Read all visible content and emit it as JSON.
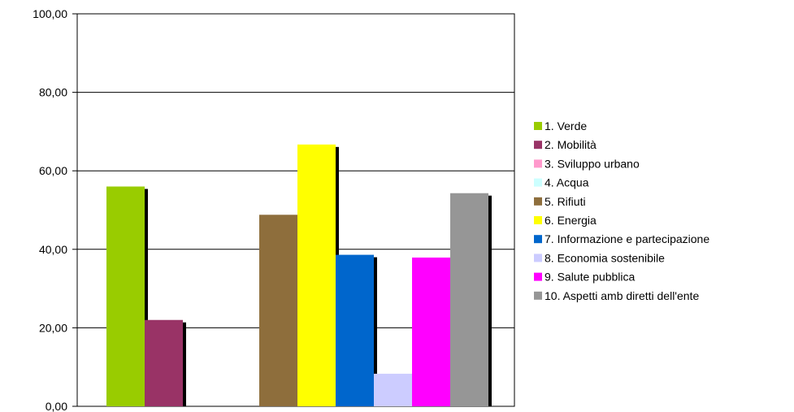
{
  "chart_data": {
    "type": "bar",
    "title": "",
    "xlabel": "",
    "ylabel": "",
    "ylim": [
      0,
      100
    ],
    "yticks": [
      "0,00",
      "20,00",
      "40,00",
      "60,00",
      "80,00",
      "100,00"
    ],
    "grid": true,
    "legend_position": "right",
    "series": [
      {
        "name": "1. Verde",
        "value": 56,
        "color": "#99CC00"
      },
      {
        "name": "2. Mobilità",
        "value": 22,
        "color": "#993366"
      },
      {
        "name": "3. Sviluppo urbano",
        "value": 0,
        "color": "#FF99CC"
      },
      {
        "name": "4. Acqua",
        "value": 0,
        "color": "#CCFFFF"
      },
      {
        "name": "5. Rifiuti",
        "value": 48.8,
        "color": "#8E6E3C"
      },
      {
        "name": "6. Energia",
        "value": 66.7,
        "color": "#FFFF00"
      },
      {
        "name": "7. Informazione e partecipazione",
        "value": 38.6,
        "color": "#0066CC"
      },
      {
        "name": "8. Economia sostenibile",
        "value": 8.3,
        "color": "#CCCCFF"
      },
      {
        "name": "9. Salute pubblica",
        "value": 37.9,
        "color": "#FF00FF"
      },
      {
        "name": "10. Aspetti amb diretti dell'ente",
        "value": 54.3,
        "color": "#969696"
      }
    ]
  }
}
